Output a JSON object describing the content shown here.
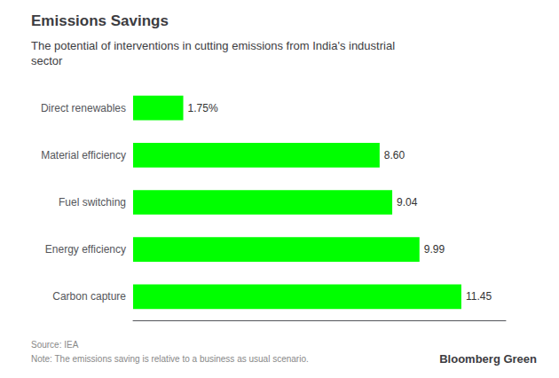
{
  "chart_data": {
    "type": "bar",
    "orientation": "horizontal",
    "title": "Emissions Savings",
    "subtitle": "The potential of interventions in cutting emissions from India's industrial\nsector",
    "categories": [
      "Direct renewables",
      "Material efficiency",
      "Fuel switching",
      "Energy efficiency",
      "Carbon capture"
    ],
    "values": [
      1.75,
      8.6,
      9.04,
      9.99,
      11.45
    ],
    "value_labels": [
      "1.75%",
      "8.60",
      "9.04",
      "9.99",
      "11.45"
    ],
    "data_labels": true,
    "color": "#00ff00",
    "xlim": [
      0,
      13
    ],
    "tick_labels": "y",
    "grid": false,
    "annotations": [
      "Source: IEA",
      "Note: The emissions saving is relative to a business as usual scenario.",
      "Bloomberg Green"
    ]
  }
}
